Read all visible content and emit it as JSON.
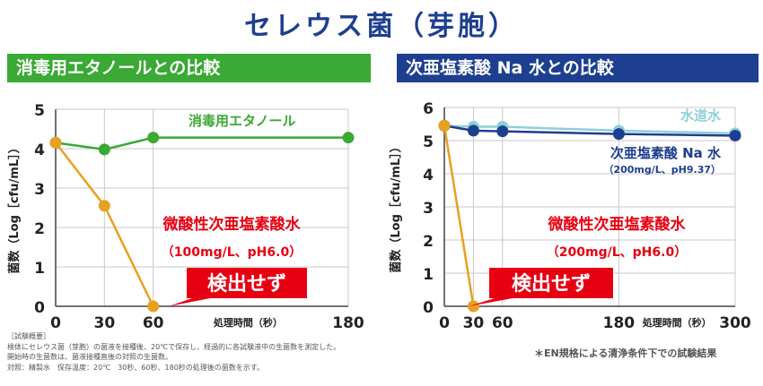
{
  "page_title": "セレウス菌（芽胞）",
  "notes": {
    "heading": "［試験概要］",
    "lines": [
      "検体にセレウス菌（芽胞）の菌液を接種後、20℃で保存し、経過的に各試験液中の生菌数を測定した。",
      "開始時の生菌数は、菌液接種直後の対照の生菌数。",
      "対照：精製水　保存温度：20℃　30秒、60秒、180秒の処理後の菌数を示す。"
    ]
  },
  "footnote": "＊EN規格による清浄条件下での試験結果",
  "chart_data": [
    {
      "type": "line",
      "panel_title": "消毒用エタノールとの比較",
      "ylabel": "菌数（Log［cfu/mL］）",
      "xlabel": "処理時間（秒）",
      "x_ticks": [
        0,
        30,
        60,
        180
      ],
      "y_ticks": [
        0,
        1,
        2,
        3,
        4,
        5
      ],
      "xlim": [
        0,
        180
      ],
      "ylim": [
        0,
        5
      ],
      "grid": true,
      "series": [
        {
          "name": "消毒用エタノール",
          "color": "#3aa935",
          "x": [
            0,
            30,
            60,
            180
          ],
          "y": [
            4.15,
            3.98,
            4.28,
            4.28
          ]
        },
        {
          "name": "微酸性次亜塩素酸水",
          "subtitle": "（100mg/L、pH6.0）",
          "color": "#e8a020",
          "x": [
            0,
            30,
            60
          ],
          "y": [
            4.15,
            2.55,
            0
          ]
        }
      ],
      "annotation": "検出せず"
    },
    {
      "type": "line",
      "panel_title": "次亜塩素酸 Na 水との比較",
      "ylabel": "菌数（Log［cfu/mL］）",
      "xlabel": "処理時間（秒）",
      "x_ticks": [
        0,
        30,
        60,
        180,
        300
      ],
      "y_ticks": [
        0,
        1,
        2,
        3,
        4,
        5,
        6
      ],
      "xlim": [
        0,
        300
      ],
      "ylim": [
        0,
        6
      ],
      "grid": true,
      "series": [
        {
          "name": "水道水",
          "color": "#8fd0d8",
          "x": [
            0,
            30,
            60,
            180,
            300
          ],
          "y": [
            5.45,
            5.42,
            5.42,
            5.3,
            5.22
          ]
        },
        {
          "name": "次亜塩素酸 Na 水",
          "subtitle": "（200mg/L、pH9.37）",
          "color": "#1e3f8f",
          "x": [
            0,
            30,
            60,
            180,
            300
          ],
          "y": [
            5.45,
            5.3,
            5.28,
            5.2,
            5.15
          ]
        },
        {
          "name": "微酸性次亜塩素酸水",
          "subtitle": "（200mg/L、pH6.0）",
          "color": "#e8a020",
          "x": [
            0,
            30
          ],
          "y": [
            5.45,
            0
          ]
        }
      ],
      "annotation": "検出せず"
    }
  ]
}
